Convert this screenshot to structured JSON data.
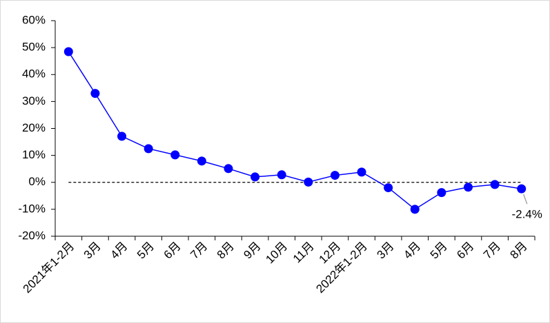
{
  "chart_data": {
    "type": "line",
    "categories": [
      "2021年1-2月",
      "3月",
      "4月",
      "5月",
      "6月",
      "7月",
      "8月",
      "9月",
      "10月",
      "11月",
      "12月",
      "2022年1-2月",
      "3月",
      "4月",
      "5月",
      "6月",
      "7月",
      "8月"
    ],
    "series": [
      {
        "name": null,
        "color": "#0000ff",
        "values": [
          48.5,
          33.0,
          17.1,
          12.5,
          10.2,
          7.9,
          5.1,
          2.0,
          2.8,
          0.1,
          2.6,
          3.8,
          -2.0,
          -10.0,
          -3.8,
          -1.8,
          -0.8,
          -2.4
        ],
        "value_labels": [
          null,
          null,
          null,
          null,
          null,
          null,
          null,
          null,
          null,
          null,
          null,
          null,
          null,
          null,
          null,
          null,
          null,
          "-2.4%"
        ]
      }
    ],
    "ylim": [
      -20,
      60
    ],
    "yticks": [
      {
        "value": -20,
        "label": "-20%"
      },
      {
        "value": -10,
        "label": "-10%"
      },
      {
        "value": 0,
        "label": "0%"
      },
      {
        "value": 10,
        "label": "10%"
      },
      {
        "value": 20,
        "label": "20%"
      },
      {
        "value": 30,
        "label": "30%"
      },
      {
        "value": 40,
        "label": "40%"
      },
      {
        "value": 50,
        "label": "50%"
      },
      {
        "value": 60,
        "label": "60%"
      }
    ],
    "reference_line": 0,
    "grid": false
  }
}
